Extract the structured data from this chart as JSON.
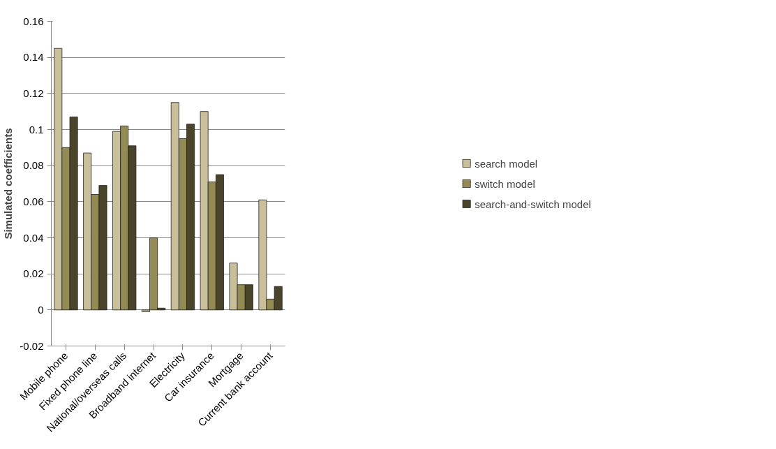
{
  "chart_data": {
    "type": "bar",
    "ylabel": "Simulated coefficients",
    "categories": [
      "Mobile phone",
      "Fixed phone line",
      "National/overseas calls",
      "Broadband internet",
      "Electricity",
      "Car insurance",
      "Mortgage",
      "Current bank account"
    ],
    "series": [
      {
        "name": "search model",
        "color": "#c9bf9a",
        "values": [
          0.145,
          0.087,
          0.099,
          -0.001,
          0.115,
          0.11,
          0.026,
          0.061
        ]
      },
      {
        "name": "switch model",
        "color": "#948a54",
        "values": [
          0.09,
          0.064,
          0.102,
          0.04,
          0.095,
          0.071,
          0.014,
          0.006
        ]
      },
      {
        "name": "search-and-switch model",
        "color": "#4a452a",
        "values": [
          0.107,
          0.069,
          0.091,
          0.001,
          0.103,
          0.075,
          0.014,
          0.013
        ]
      }
    ],
    "ylim": [
      -0.02,
      0.16
    ],
    "yticks": [
      {
        "value": -0.02,
        "label": "-0.02"
      },
      {
        "value": 0,
        "label": "0"
      },
      {
        "value": 0.02,
        "label": "0.02"
      },
      {
        "value": 0.04,
        "label": "0.04"
      },
      {
        "value": 0.06,
        "label": "0.06"
      },
      {
        "value": 0.08,
        "label": "0.08"
      },
      {
        "value": 0.1,
        "label": "0.1"
      },
      {
        "value": 0.12,
        "label": "0.12"
      },
      {
        "value": 0.14,
        "label": "0.14"
      },
      {
        "value": 0.16,
        "label": "0.16"
      }
    ],
    "grid": "y",
    "legend": "right"
  }
}
